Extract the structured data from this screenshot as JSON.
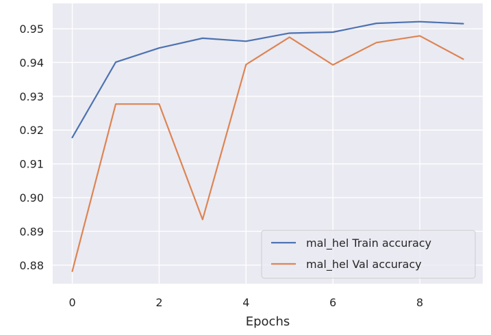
{
  "chart_data": {
    "type": "line",
    "title": "",
    "xlabel": "Epochs",
    "ylabel": "",
    "x": [
      0,
      1,
      2,
      3,
      4,
      5,
      6,
      7,
      8,
      9
    ],
    "xlim": [
      -0.45,
      9.45
    ],
    "ylim": [
      0.8745,
      0.9575
    ],
    "xticks": [
      0,
      2,
      4,
      6,
      8
    ],
    "yticks": [
      0.88,
      0.89,
      0.9,
      0.91,
      0.92,
      0.93,
      0.94,
      0.95
    ],
    "xtick_labels": [
      "0",
      "2",
      "4",
      "6",
      "8"
    ],
    "ytick_labels": [
      "0.88",
      "0.89",
      "0.90",
      "0.91",
      "0.92",
      "0.93",
      "0.94",
      "0.95"
    ],
    "grid": true,
    "legend_position": "bottom-right",
    "background": "#eaeaf2",
    "series": [
      {
        "name": "mal_hel Train accuracy",
        "color": "#4c72b0",
        "values": [
          0.9178,
          0.9401,
          0.9443,
          0.9472,
          0.9463,
          0.9487,
          0.949,
          0.9516,
          0.9521,
          0.9515
        ]
      },
      {
        "name": "mal_hel Val accuracy",
        "color": "#dd8452",
        "values": [
          0.8782,
          0.9277,
          0.9277,
          0.8935,
          0.9394,
          0.9475,
          0.9393,
          0.9459,
          0.9479,
          0.941
        ]
      }
    ]
  }
}
